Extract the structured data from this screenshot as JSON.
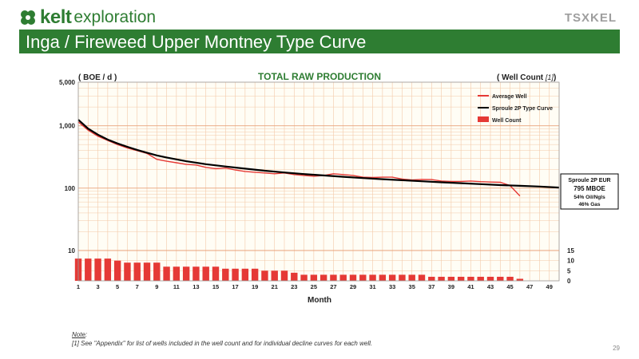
{
  "header": {
    "logo_brand": "kelt",
    "logo_sub": "exploration",
    "tsx_logo": "TSXKEL",
    "title": "Inga / Fireweed Upper Montney Type Curve"
  },
  "chart_data": {
    "type": "line",
    "title": "TOTAL RAW PRODUCTION",
    "ylabel": "( BOE / d )",
    "y2label": "( Well Count ",
    "y2label_note": "[1]",
    "xlabel": "Month",
    "y_scale": "log",
    "ylim": [
      10,
      5000
    ],
    "y_ticks": [
      "10",
      "100",
      "1,000",
      "5,000"
    ],
    "y2_ticks": [
      "0",
      "5",
      "10",
      "15"
    ],
    "y2lim": [
      0,
      15
    ],
    "x_ticks": [
      "1",
      "3",
      "5",
      "7",
      "9",
      "11",
      "13",
      "15",
      "17",
      "19",
      "21",
      "23",
      "25",
      "27",
      "29",
      "31",
      "33",
      "35",
      "37",
      "39",
      "41",
      "43",
      "45",
      "47",
      "49"
    ],
    "xlim": [
      1,
      50
    ],
    "grid": true,
    "legend_position": "top-right",
    "legend": [
      {
        "name": "Average Well",
        "color": "#e53935"
      },
      {
        "name": "Sproule 2P Type Curve",
        "color": "#000000"
      },
      {
        "name": "Well Count",
        "color": "#e53935"
      }
    ],
    "series": [
      {
        "name": "Average Well",
        "color": "#e53935",
        "x": [
          1,
          2,
          3,
          4,
          5,
          6,
          7,
          8,
          9,
          10,
          11,
          12,
          13,
          14,
          15,
          16,
          17,
          18,
          19,
          20,
          21,
          22,
          23,
          24,
          25,
          26,
          27,
          28,
          29,
          30,
          31,
          32,
          33,
          34,
          35,
          36,
          37,
          38,
          39,
          40,
          41,
          42,
          43,
          44,
          45,
          46
        ],
        "values": [
          1150,
          850,
          680,
          580,
          500,
          440,
          400,
          360,
          290,
          270,
          255,
          240,
          235,
          215,
          205,
          210,
          195,
          185,
          180,
          175,
          170,
          175,
          165,
          160,
          155,
          160,
          170,
          165,
          160,
          150,
          148,
          150,
          150,
          140,
          135,
          138,
          137,
          130,
          128,
          128,
          130,
          127,
          125,
          124,
          110,
          75
        ]
      },
      {
        "name": "Sproule 2P Type Curve",
        "color": "#000000",
        "x": [
          1,
          2,
          3,
          4,
          5,
          6,
          7,
          8,
          9,
          10,
          12,
          14,
          16,
          18,
          20,
          22,
          24,
          26,
          28,
          30,
          32,
          34,
          36,
          38,
          40,
          42,
          44,
          46,
          48,
          50
        ],
        "values": [
          1250,
          900,
          720,
          600,
          520,
          460,
          410,
          370,
          335,
          310,
          270,
          242,
          222,
          205,
          190,
          178,
          168,
          160,
          152,
          145,
          139,
          134,
          129,
          124,
          120,
          116,
          112,
          109,
          106,
          102
        ]
      },
      {
        "name": "Well Count",
        "color": "#e53935",
        "axis": "right",
        "x": [
          1,
          2,
          3,
          4,
          5,
          6,
          7,
          8,
          9,
          10,
          11,
          12,
          13,
          14,
          15,
          16,
          17,
          18,
          19,
          20,
          21,
          22,
          23,
          24,
          25,
          26,
          27,
          28,
          29,
          30,
          31,
          32,
          33,
          34,
          35,
          36,
          37,
          38,
          39,
          40,
          41,
          42,
          43,
          44,
          45,
          46
        ],
        "values": [
          11,
          11,
          11,
          11,
          10,
          9,
          9,
          9,
          9,
          7,
          7,
          7,
          7,
          7,
          7,
          6,
          6,
          6,
          6,
          5,
          5,
          5,
          4,
          3,
          3,
          3,
          3,
          3,
          3,
          3,
          3,
          3,
          3,
          3,
          3,
          3,
          2,
          2,
          2,
          2,
          2,
          2,
          2,
          2,
          2,
          1
        ]
      }
    ],
    "annotation": {
      "title": "Sproule 2P EUR",
      "value": "795 MBOE",
      "line1": "54% Oil/Ngls",
      "line2": "46% Gas"
    }
  },
  "note": {
    "heading": "Note",
    "colon": ":",
    "text": "[1]  See \"Appendix\" for list of wells included in the well count and for individual decline curves for each well."
  },
  "page_number": "29"
}
